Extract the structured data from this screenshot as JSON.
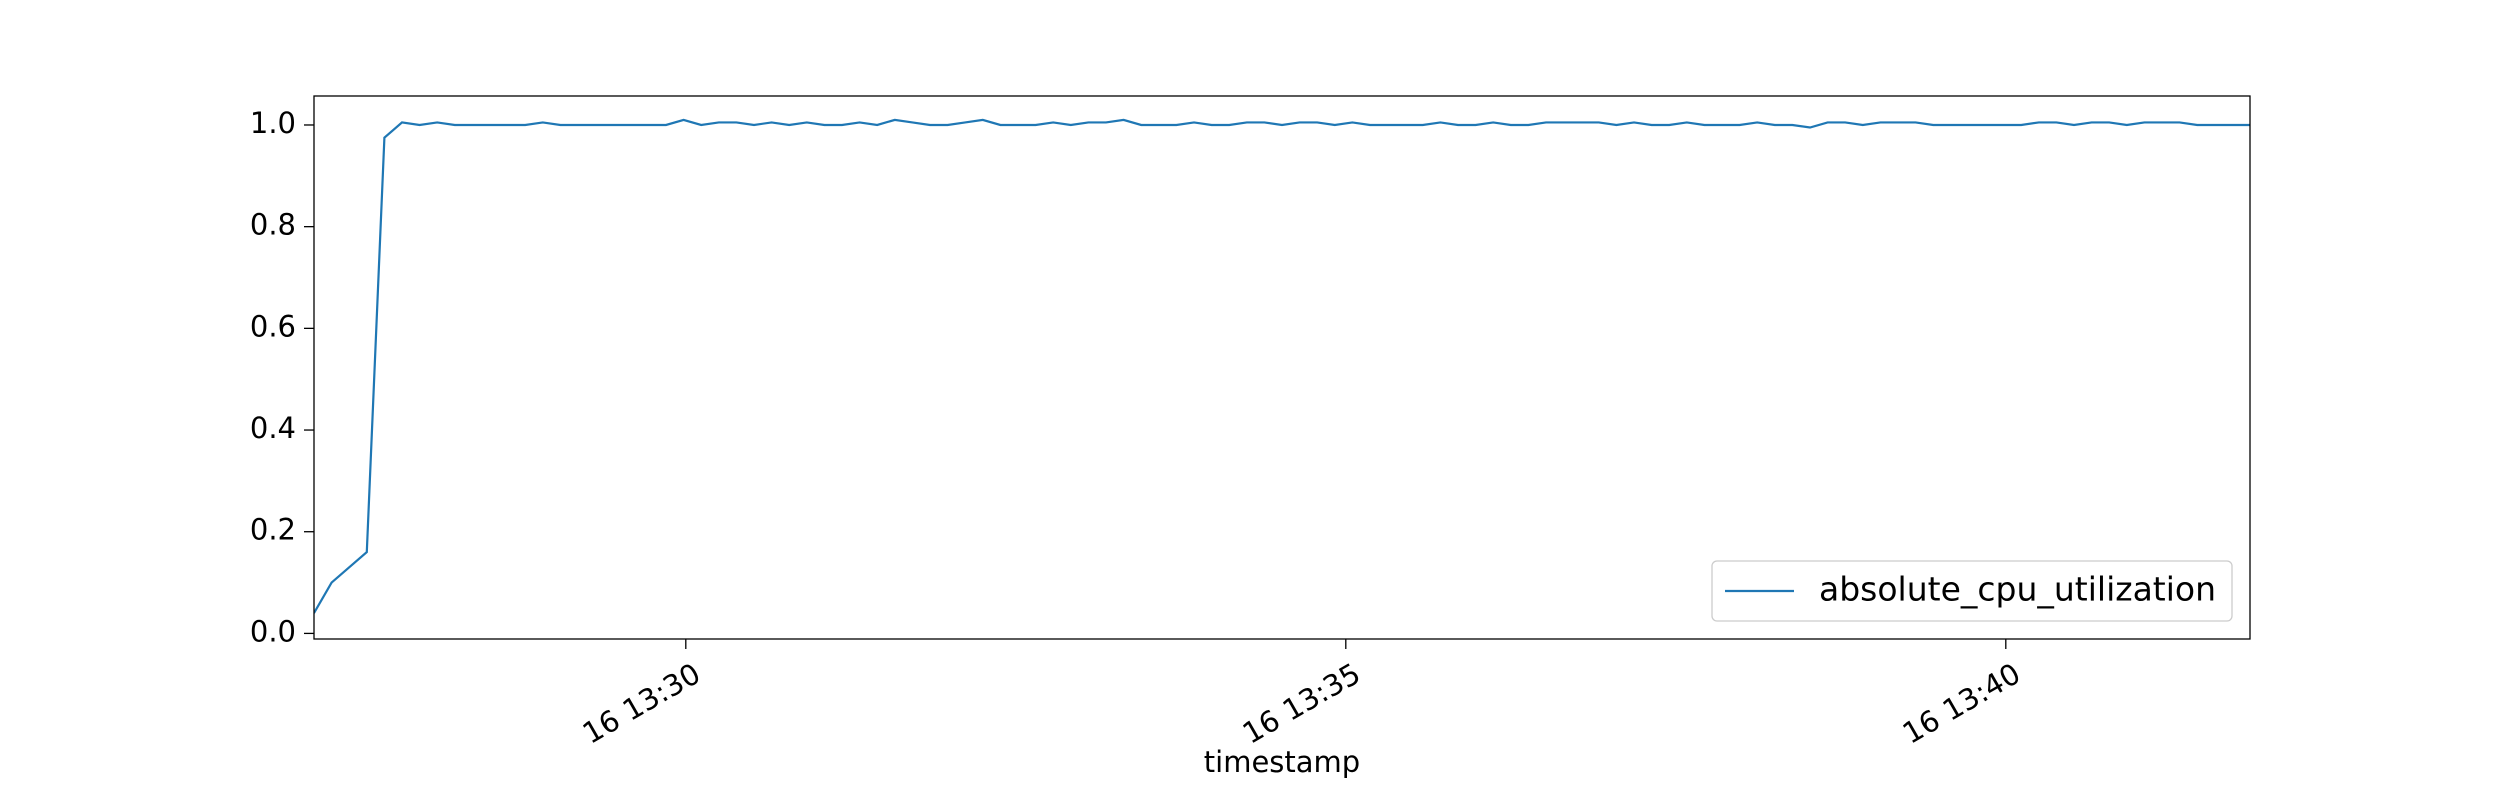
{
  "chart_data": {
    "type": "line",
    "xlabel": "timestamp",
    "x": [
      "13:27:11",
      "13:27:19",
      "13:27:27",
      "13:27:35",
      "13:27:43",
      "13:27:51",
      "13:27:59",
      "13:28:07",
      "13:28:15",
      "13:28:23",
      "13:28:31",
      "13:28:39",
      "13:28:47",
      "13:28:55",
      "13:29:03",
      "13:29:11",
      "13:29:19",
      "13:29:27",
      "13:29:35",
      "13:29:43",
      "13:29:51",
      "13:29:59",
      "13:30:07",
      "13:30:15",
      "13:30:23",
      "13:30:31",
      "13:30:39",
      "13:30:47",
      "13:30:55",
      "13:31:03",
      "13:31:11",
      "13:31:19",
      "13:31:27",
      "13:31:35",
      "13:31:43",
      "13:31:51",
      "13:31:59",
      "13:32:07",
      "13:32:15",
      "13:32:23",
      "13:32:31",
      "13:32:39",
      "13:32:47",
      "13:32:55",
      "13:33:03",
      "13:33:11",
      "13:33:19",
      "13:33:27",
      "13:33:35",
      "13:33:43",
      "13:33:51",
      "13:33:59",
      "13:34:07",
      "13:34:15",
      "13:34:23",
      "13:34:31",
      "13:34:39",
      "13:34:47",
      "13:34:55",
      "13:35:03",
      "13:35:11",
      "13:35:19",
      "13:35:27",
      "13:35:35",
      "13:35:43",
      "13:35:51",
      "13:35:59",
      "13:36:07",
      "13:36:15",
      "13:36:23",
      "13:36:31",
      "13:36:39",
      "13:36:47",
      "13:36:55",
      "13:37:03",
      "13:37:11",
      "13:37:19",
      "13:37:27",
      "13:37:35",
      "13:37:43",
      "13:37:51",
      "13:37:59",
      "13:38:07",
      "13:38:15",
      "13:38:23",
      "13:38:31",
      "13:38:39",
      "13:38:47",
      "13:38:55",
      "13:39:03",
      "13:39:11",
      "13:39:19",
      "13:39:27",
      "13:39:35",
      "13:39:43",
      "13:39:51",
      "13:39:59",
      "13:40:07",
      "13:40:15",
      "13:40:23",
      "13:40:31",
      "13:40:39",
      "13:40:47",
      "13:40:55",
      "13:41:03",
      "13:41:11",
      "13:41:19",
      "13:41:27",
      "13:41:35",
      "13:41:43",
      "13:41:51"
    ],
    "series": [
      {
        "name": "absolute_cpu_utilization",
        "color": "#1f77b4",
        "values": [
          0.04,
          0.1,
          0.13,
          0.16,
          0.975,
          1.005,
          1.0,
          1.005,
          1.0,
          1.0,
          1.0,
          1.0,
          1.0,
          1.005,
          1.0,
          1.0,
          1.0,
          1.0,
          1.0,
          1.0,
          1.0,
          1.01,
          1.0,
          1.005,
          1.005,
          1.0,
          1.005,
          1.0,
          1.005,
          1.0,
          1.0,
          1.005,
          1.0,
          1.01,
          1.005,
          1.0,
          1.0,
          1.005,
          1.01,
          1.0,
          1.0,
          1.0,
          1.005,
          1.0,
          1.005,
          1.005,
          1.01,
          1.0,
          1.0,
          1.0,
          1.005,
          1.0,
          1.0,
          1.005,
          1.005,
          1.0,
          1.005,
          1.005,
          1.0,
          1.005,
          1.0,
          1.0,
          1.0,
          1.0,
          1.005,
          1.0,
          1.0,
          1.005,
          1.0,
          1.0,
          1.005,
          1.005,
          1.005,
          1.005,
          1.0,
          1.005,
          1.0,
          1.0,
          1.005,
          1.0,
          1.0,
          1.0,
          1.005,
          1.0,
          1.0,
          0.995,
          1.005,
          1.005,
          1.0,
          1.005,
          1.005,
          1.005,
          1.0,
          1.0,
          1.0,
          1.0,
          1.0,
          1.0,
          1.005,
          1.005,
          1.0,
          1.005,
          1.005,
          1.0,
          1.005,
          1.005,
          1.005,
          1.0,
          1.0,
          1.0,
          1.0
        ]
      }
    ],
    "xlim": [
      "13:27:11",
      "13:41:51"
    ],
    "xticks": [
      {
        "value": "13:30:00",
        "label": "16 13:30"
      },
      {
        "value": "13:35:00",
        "label": "16 13:35"
      },
      {
        "value": "13:40:00",
        "label": "16 13:40"
      }
    ],
    "ylim": [
      -0.011,
      1.057
    ],
    "yticks": [
      {
        "value": 0,
        "label": "0.0"
      },
      0.2,
      0.4,
      0.6,
      0.8,
      {
        "value": 1,
        "label": "1.0"
      }
    ],
    "legend": "lower right"
  }
}
